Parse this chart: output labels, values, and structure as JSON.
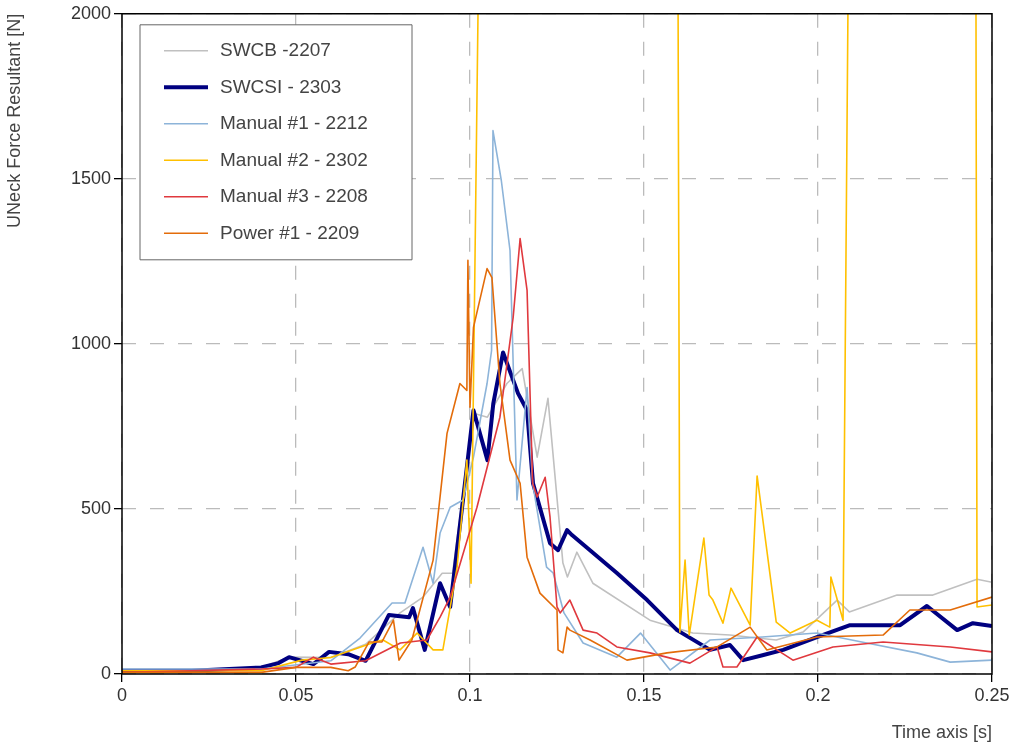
{
  "chart_data": {
    "type": "line",
    "xlabel": "Time axis [s]",
    "ylabel": "UNeck Force Resultant [N]",
    "xlim": [
      0,
      0.25
    ],
    "ylim": [
      0,
      2000
    ],
    "xticks": [
      0,
      0.05,
      0.1,
      0.15,
      0.2,
      0.25
    ],
    "yticks": [
      0,
      500,
      1000,
      1500,
      2000
    ],
    "grid": true,
    "legend": "top left",
    "line_style": "solid",
    "marker": "none",
    "series": [
      {
        "name": "SWCB -2207",
        "color": "#c0c0c0",
        "x": [
          0,
          0.02,
          0.04,
          0.048,
          0.06,
          0.07,
          0.0799,
          0.0865,
          0.092,
          0.095,
          0.101,
          0.105,
          0.1106,
          0.115,
          0.1193,
          0.1224,
          0.1267,
          0.128,
          0.1307,
          0.1353,
          0.1517,
          0.164,
          0.1747,
          0.188,
          0.1957,
          0.2055,
          0.209,
          0.2227,
          0.233,
          0.2457,
          0.25
        ],
        "values": [
          10,
          10,
          20,
          51,
          50,
          90,
          185,
          233,
          305,
          305,
          790,
          778,
          880,
          925,
          657,
          835,
          336,
          294,
          369,
          275,
          163,
          124,
          118,
          103,
          127,
          224,
          188,
          239,
          239,
          287,
          278
        ]
      },
      {
        "name": "SWCSI - 2303",
        "color": "#000080",
        "x": [
          0,
          0.02,
          0.04,
          0.045,
          0.048,
          0.055,
          0.0595,
          0.065,
          0.07,
          0.0767,
          0.0825,
          0.0836,
          0.087,
          0.0914,
          0.0943,
          0.099,
          0.101,
          0.105,
          0.1067,
          0.1095,
          0.1138,
          0.1164,
          0.1181,
          0.123,
          0.1253,
          0.1279,
          0.1293,
          0.1422,
          0.1509,
          0.1595,
          0.169,
          0.1747,
          0.1785,
          0.19,
          0.1997,
          0.2092,
          0.2236,
          0.2313,
          0.24,
          0.2445,
          0.25
        ],
        "values": [
          10,
          10,
          20,
          33,
          51,
          30,
          67,
          60,
          40,
          179,
          172,
          200,
          73,
          275,
          203,
          617,
          799,
          648,
          820,
          974,
          850,
          799,
          578,
          396,
          375,
          436,
          421,
          306,
          224,
          133,
          73,
          88,
          42,
          73,
          112,
          148,
          148,
          206,
          133,
          154,
          145
        ]
      },
      {
        "name": "Manual #1 - 2212",
        "color": "#8db4d9",
        "x": [
          0,
          0.02,
          0.04,
          0.06,
          0.0684,
          0.0776,
          0.0813,
          0.0865,
          0.0894,
          0.0914,
          0.0943,
          0.098,
          0.101,
          0.1049,
          0.1062,
          0.1066,
          0.109,
          0.1115,
          0.1135,
          0.1164,
          0.118,
          0.122,
          0.1239,
          0.127,
          0.1325,
          0.1422,
          0.149,
          0.1575,
          0.169,
          0.184,
          0.1997,
          0.214,
          0.2284,
          0.238,
          0.25
        ],
        "values": [
          15,
          15,
          15,
          40,
          109,
          215,
          215,
          384,
          275,
          427,
          505,
          527,
          657,
          880,
          980,
          1646,
          1495,
          1283,
          527,
          868,
          578,
          324,
          306,
          185,
          94,
          51,
          124,
          12,
          103,
          112,
          124,
          94,
          64,
          36,
          42
        ]
      },
      {
        "name": "Manual #2 - 2302",
        "color": "#ffc000",
        "x": [
          0,
          0.04,
          0.0517,
          0.06,
          0.0727,
          0.075,
          0.0799,
          0.0848,
          0.0894,
          0.0922,
          0.0963,
          0.0991,
          0.1003,
          0.1023,
          0.13,
          0.1598,
          0.1603,
          0.1618,
          0.163,
          0.1672,
          0.1687,
          0.1698,
          0.1727,
          0.175,
          0.1805,
          0.1825,
          0.188,
          0.192,
          0.1997,
          0.2034,
          0.2037,
          0.2072,
          0.2086,
          0.23,
          0.2454,
          0.2457,
          0.25
        ],
        "values": [
          10,
          10,
          42,
          50,
          97,
          103,
          73,
          124,
          73,
          73,
          324,
          648,
          275,
          2000,
          null,
          2000,
          127,
          345,
          118,
          412,
          239,
          224,
          154,
          260,
          148,
          600,
          157,
          124,
          163,
          142,
          294,
          163,
          2000,
          null,
          2000,
          203,
          209
        ]
      },
      {
        "name": "Manual #3 - 2208",
        "color": "#e0393e",
        "x": [
          0,
          0.02,
          0.04,
          0.05,
          0.055,
          0.06,
          0.07,
          0.08,
          0.0876,
          0.0914,
          0.0943,
          0.102,
          0.1086,
          0.1124,
          0.1144,
          0.1164,
          0.118,
          0.1193,
          0.1216,
          0.123,
          0.125,
          0.1259,
          0.1287,
          0.1325,
          0.1365,
          0.1422,
          0.1517,
          0.1632,
          0.171,
          0.1727,
          0.1767,
          0.1825,
          0.1928,
          0.2043,
          0.2187,
          0.238,
          0.25
        ],
        "values": [
          5,
          10,
          15,
          20,
          51,
          30,
          40,
          94,
          103,
          172,
          233,
          505,
          778,
          1080,
          1319,
          1162,
          578,
          536,
          596,
          475,
          203,
          185,
          224,
          133,
          124,
          82,
          64,
          33,
          82,
          21,
          21,
          112,
          42,
          82,
          97,
          82,
          67
        ]
      },
      {
        "name": "Power #1 - 2209",
        "color": "#e36c0a",
        "x": [
          0,
          0.02,
          0.04,
          0.05,
          0.06,
          0.065,
          0.067,
          0.071,
          0.0747,
          0.078,
          0.0796,
          0.0833,
          0.0894,
          0.0934,
          0.0971,
          0.0991,
          0.0994,
          0.1,
          0.101,
          0.1049,
          0.1063,
          0.1086,
          0.1115,
          0.1144,
          0.1164,
          0.1201,
          0.125,
          0.1253,
          0.1267,
          0.1279,
          0.1287,
          0.1345,
          0.1451,
          0.1566,
          0.171,
          0.1805,
          0.1853,
          0.1997,
          0.2187,
          0.2264,
          0.238,
          0.25
        ],
        "values": [
          5,
          5,
          5,
          20,
          20,
          10,
          21,
          97,
          97,
          163,
          42,
          103,
          345,
          729,
          880,
          859,
          1253,
          808,
          1050,
          1228,
          1201,
          880,
          648,
          578,
          354,
          245,
          194,
          73,
          64,
          142,
          133,
          103,
          42,
          64,
          82,
          142,
          73,
          112,
          118,
          194,
          194,
          233
        ]
      }
    ]
  }
}
